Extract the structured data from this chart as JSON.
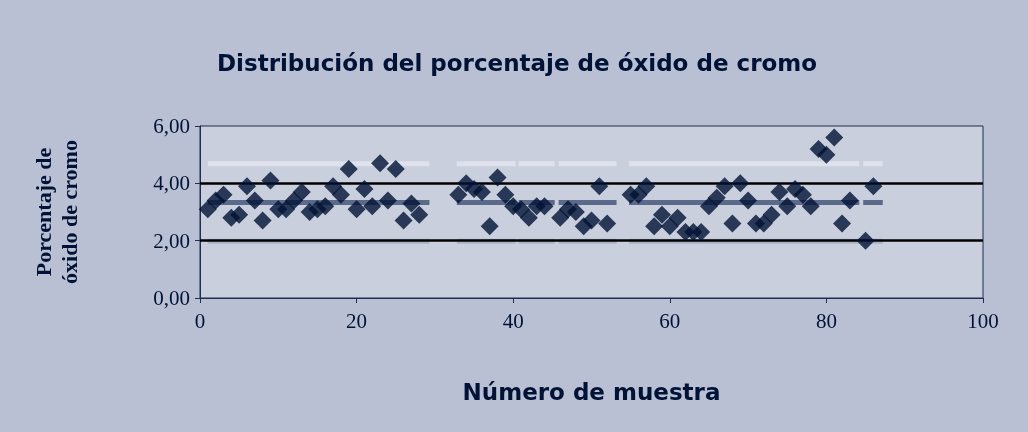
{
  "chart_data": {
    "type": "scatter",
    "title": "Distribución del porcentaje de óxido de cromo",
    "xlabel": "Número de muestra",
    "ylabel": "Porcentaje de\nóxido de cromo",
    "xlim": [
      0,
      100
    ],
    "xticks": [
      0,
      20,
      40,
      60,
      80,
      100
    ],
    "ylim": [
      0,
      6
    ],
    "yticks": [
      {
        "value": 0,
        "label": "0,00"
      },
      {
        "value": 2,
        "label": "2,00"
      },
      {
        "value": 4,
        "label": "4,00"
      },
      {
        "value": 6,
        "label": "6,00"
      }
    ],
    "grid": false,
    "ref_lines": [
      {
        "axis": "y",
        "value": 4,
        "color": "#000000"
      },
      {
        "axis": "y",
        "value": 2,
        "color": "#000000"
      }
    ],
    "series": [
      {
        "type": "line",
        "marker": "none",
        "color": "#dfe2ec",
        "x": [
          1,
          29.3,
          31,
          32.8,
          40.3,
          40.5,
          40.7,
          45.3,
          45.5,
          45.8,
          53.2,
          54,
          54.8,
          84.2,
          84.5,
          84.7,
          87.2
        ],
        "values": [
          4.68,
          4.68,
          null,
          4.68,
          4.68,
          null,
          4.68,
          4.68,
          null,
          4.68,
          4.68,
          null,
          4.68,
          4.68,
          null,
          4.68,
          4.68
        ]
      },
      {
        "type": "line",
        "marker": "none",
        "color": "#5b6a8a",
        "x": [
          1,
          29.3,
          31,
          32.8,
          40.3,
          40.5,
          40.7,
          45.3,
          45.5,
          45.8,
          53.2,
          54,
          54.8,
          84.2,
          84.5,
          84.7,
          87.2
        ],
        "values": [
          3.33,
          3.33,
          null,
          3.33,
          3.33,
          null,
          3.33,
          3.33,
          null,
          3.33,
          3.33,
          null,
          3.33,
          3.33,
          null,
          3.33,
          3.33
        ]
      },
      {
        "type": "line",
        "marker": "none",
        "color": "#a9b2c8",
        "x": [
          1,
          29.3,
          31,
          32.8,
          40.3,
          40.5,
          40.7,
          45.3,
          45.5,
          45.8,
          53.2,
          54,
          54.8,
          84.2,
          84.5,
          84.7,
          87.2
        ],
        "values": [
          1.98,
          1.98,
          null,
          1.98,
          1.98,
          null,
          1.98,
          1.98,
          null,
          1.98,
          1.98,
          null,
          1.98,
          1.98,
          null,
          1.98,
          1.98
        ]
      },
      {
        "marker": "diamond",
        "color": "#001235",
        "x": [
          1,
          2,
          3,
          4,
          5,
          6,
          7,
          8,
          9,
          10,
          11,
          12,
          13,
          14,
          15,
          16,
          17,
          18,
          19,
          20,
          21,
          22,
          23,
          24,
          25,
          26,
          27,
          28,
          33,
          34,
          35,
          36,
          37,
          38,
          39,
          40,
          41,
          42,
          43,
          44,
          46,
          47,
          48,
          49,
          50,
          51,
          52,
          55,
          56,
          57,
          58,
          59,
          60,
          61,
          62,
          63,
          64,
          65,
          66,
          67,
          68,
          69,
          70,
          71,
          72,
          73,
          74,
          75,
          76,
          77,
          78,
          79,
          80,
          81,
          82,
          83,
          85,
          86
        ],
        "values": [
          3.1,
          3.4,
          3.6,
          2.8,
          2.9,
          3.9,
          3.4,
          2.7,
          4.1,
          3.1,
          3.1,
          3.4,
          3.7,
          3.0,
          3.1,
          3.2,
          3.9,
          3.6,
          4.5,
          3.1,
          3.8,
          3.2,
          4.7,
          3.4,
          4.5,
          2.7,
          3.3,
          2.9,
          3.6,
          4.0,
          3.8,
          3.7,
          2.5,
          4.2,
          3.6,
          3.2,
          3.1,
          2.8,
          3.2,
          3.2,
          2.8,
          3.1,
          3.0,
          2.5,
          2.7,
          3.9,
          2.6,
          3.6,
          3.6,
          3.9,
          2.5,
          2.9,
          2.5,
          2.8,
          2.3,
          2.3,
          2.3,
          3.2,
          3.5,
          3.9,
          2.6,
          4.0,
          3.4,
          2.6,
          2.6,
          2.9,
          3.7,
          3.2,
          3.8,
          3.6,
          3.2,
          5.2,
          5.0,
          5.6,
          2.6,
          3.4,
          2.0,
          3.9
        ]
      }
    ]
  }
}
